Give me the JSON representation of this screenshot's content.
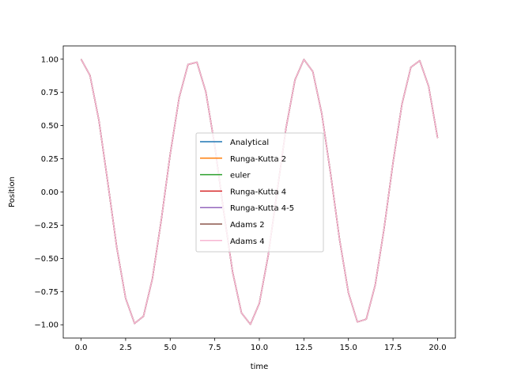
{
  "chart_data": {
    "type": "line",
    "title": "",
    "xlabel": "time",
    "ylabel": "Position",
    "xlim": [
      -1.0,
      21.0
    ],
    "ylim": [
      -1.1,
      1.1
    ],
    "x_ticks": [
      0.0,
      2.5,
      5.0,
      7.5,
      10.0,
      12.5,
      15.0,
      17.5,
      20.0
    ],
    "x_tick_labels": [
      "0.0",
      "2.5",
      "5.0",
      "7.5",
      "10.0",
      "12.5",
      "15.0",
      "17.5",
      "20.0"
    ],
    "y_ticks": [
      -1.0,
      -0.75,
      -0.5,
      -0.25,
      0.0,
      0.25,
      0.5,
      0.75,
      1.0
    ],
    "y_tick_labels": [
      "−1.00",
      "−0.75",
      "−0.50",
      "−0.25",
      "0.00",
      "0.25",
      "0.50",
      "0.75",
      "1.00"
    ],
    "grid": false,
    "legend_position": "center",
    "x": [
      0.0,
      0.5,
      1.0,
      1.5,
      2.0,
      2.5,
      3.0,
      3.5,
      4.0,
      4.5,
      5.0,
      5.5,
      6.0,
      6.5,
      7.0,
      7.5,
      8.0,
      8.5,
      9.0,
      9.5,
      10.0,
      10.5,
      11.0,
      11.5,
      12.0,
      12.5,
      13.0,
      13.5,
      14.0,
      14.5,
      15.0,
      15.5,
      16.0,
      16.5,
      17.0,
      17.5,
      18.0,
      18.5,
      19.0,
      19.5,
      20.0
    ],
    "series": [
      {
        "name": "Analytical",
        "color": "#1f77b4",
        "values": [
          1.0,
          0.878,
          0.54,
          0.071,
          -0.416,
          -0.801,
          -0.99,
          -0.936,
          -0.654,
          -0.211,
          0.284,
          0.709,
          0.96,
          0.977,
          0.754,
          0.347,
          -0.146,
          -0.602,
          -0.911,
          -0.997,
          -0.839,
          -0.476,
          0.004,
          0.483,
          0.844,
          0.998,
          0.907,
          0.592,
          0.137,
          -0.356,
          -0.76,
          -0.979,
          -0.958,
          -0.701,
          -0.275,
          0.22,
          0.66,
          0.939,
          0.989,
          0.795,
          0.408
        ]
      },
      {
        "name": "Runga-Kutta 2",
        "color": "#ff7f0e",
        "values": [
          1.0,
          0.878,
          0.54,
          0.071,
          -0.416,
          -0.801,
          -0.99,
          -0.936,
          -0.654,
          -0.211,
          0.284,
          0.709,
          0.96,
          0.977,
          0.754,
          0.347,
          -0.146,
          -0.602,
          -0.911,
          -0.997,
          -0.839,
          -0.476,
          0.004,
          0.483,
          0.844,
          0.998,
          0.907,
          0.592,
          0.137,
          -0.356,
          -0.76,
          -0.979,
          -0.958,
          -0.701,
          -0.275,
          0.22,
          0.66,
          0.939,
          0.989,
          0.795,
          0.408
        ]
      },
      {
        "name": "euler",
        "color": "#2ca02c",
        "values": [
          1.0,
          0.878,
          0.54,
          0.071,
          -0.416,
          -0.801,
          -0.99,
          -0.936,
          -0.654,
          -0.211,
          0.284,
          0.709,
          0.96,
          0.977,
          0.754,
          0.347,
          -0.146,
          -0.602,
          -0.911,
          -0.997,
          -0.839,
          -0.476,
          0.004,
          0.483,
          0.844,
          0.998,
          0.907,
          0.592,
          0.137,
          -0.356,
          -0.76,
          -0.979,
          -0.958,
          -0.701,
          -0.275,
          0.22,
          0.66,
          0.939,
          0.989,
          0.795,
          0.408
        ]
      },
      {
        "name": "Runga-Kutta 4",
        "color": "#d62728",
        "values": [
          1.0,
          0.878,
          0.54,
          0.071,
          -0.416,
          -0.801,
          -0.99,
          -0.936,
          -0.654,
          -0.211,
          0.284,
          0.709,
          0.96,
          0.977,
          0.754,
          0.347,
          -0.146,
          -0.602,
          -0.911,
          -0.997,
          -0.839,
          -0.476,
          0.004,
          0.483,
          0.844,
          0.998,
          0.907,
          0.592,
          0.137,
          -0.356,
          -0.76,
          -0.979,
          -0.958,
          -0.701,
          -0.275,
          0.22,
          0.66,
          0.939,
          0.989,
          0.795,
          0.408
        ]
      },
      {
        "name": "Runga-Kutta 4-5",
        "color": "#9467bd",
        "values": [
          1.0,
          0.878,
          0.54,
          0.071,
          -0.416,
          -0.801,
          -0.99,
          -0.936,
          -0.654,
          -0.211,
          0.284,
          0.709,
          0.96,
          0.977,
          0.754,
          0.347,
          -0.146,
          -0.602,
          -0.911,
          -0.997,
          -0.839,
          -0.476,
          0.004,
          0.483,
          0.844,
          0.998,
          0.907,
          0.592,
          0.137,
          -0.356,
          -0.76,
          -0.979,
          -0.958,
          -0.701,
          -0.275,
          0.22,
          0.66,
          0.939,
          0.989,
          0.795,
          0.408
        ]
      },
      {
        "name": "Adams 2",
        "color": "#8c564b",
        "values": [
          1.0,
          0.878,
          0.54,
          0.071,
          -0.416,
          -0.801,
          -0.99,
          -0.936,
          -0.654,
          -0.211,
          0.284,
          0.709,
          0.96,
          0.977,
          0.754,
          0.347,
          -0.146,
          -0.602,
          -0.911,
          -0.997,
          -0.839,
          -0.476,
          0.004,
          0.483,
          0.844,
          0.998,
          0.907,
          0.592,
          0.137,
          -0.356,
          -0.76,
          -0.979,
          -0.958,
          -0.701,
          -0.275,
          0.22,
          0.66,
          0.939,
          0.989,
          0.795,
          0.408
        ]
      },
      {
        "name": "Adams 4",
        "color": "#f7b6d2",
        "values": [
          1.0,
          0.878,
          0.54,
          0.071,
          -0.416,
          -0.801,
          -0.99,
          -0.936,
          -0.654,
          -0.211,
          0.284,
          0.709,
          0.96,
          0.977,
          0.754,
          0.347,
          -0.146,
          -0.602,
          -0.911,
          -0.997,
          -0.839,
          -0.476,
          0.004,
          0.483,
          0.844,
          0.998,
          0.907,
          0.592,
          0.137,
          -0.356,
          -0.76,
          -0.979,
          -0.958,
          -0.701,
          -0.275,
          0.22,
          0.66,
          0.939,
          0.989,
          0.795,
          0.408
        ]
      }
    ]
  }
}
